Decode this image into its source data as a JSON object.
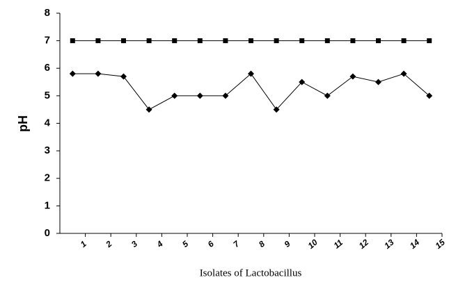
{
  "chart_data": {
    "type": "line",
    "x_label": "Isolates of Lactobacillus",
    "y_label": "pH",
    "categories": [
      "1",
      "2",
      "3",
      "4",
      "5",
      "6",
      "7",
      "8",
      "9",
      "10",
      "11",
      "12",
      "13",
      "14",
      "15"
    ],
    "series": [
      {
        "color": "#000000",
        "marker": "square",
        "values": [
          7,
          7,
          7,
          7,
          7,
          7,
          7,
          7,
          7,
          7,
          7,
          7,
          7,
          7,
          7
        ]
      },
      {
        "color": "#000000",
        "marker": "diamond",
        "values": [
          5.8,
          5.8,
          5.7,
          4.5,
          5.0,
          5.0,
          5.0,
          5.8,
          4.5,
          5.5,
          5.0,
          5.7,
          5.5,
          5.8,
          5.0
        ]
      }
    ],
    "ylim": [
      0,
      8
    ],
    "yticks": [
      0,
      1,
      2,
      3,
      4,
      5,
      6,
      7,
      8
    ],
    "grid": false
  }
}
